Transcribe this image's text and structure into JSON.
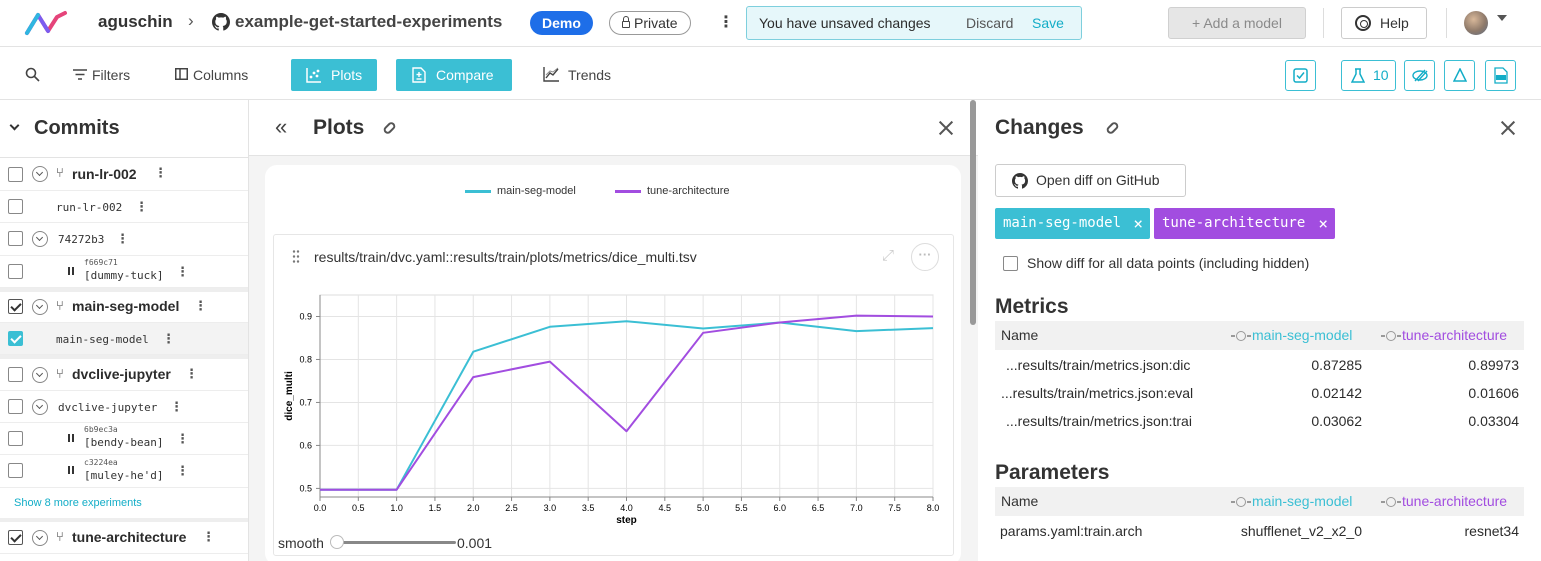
{
  "header": {
    "user": "aguschin",
    "separator": "›",
    "repo": "example-get-started-experiments",
    "demo_badge": "Demo",
    "private_badge": "Private",
    "unsaved_message": "You have unsaved changes",
    "discard_label": "Discard",
    "save_label": "Save",
    "add_model_label": "+ Add a model",
    "help_label": "Help"
  },
  "toolbar": {
    "filters_label": "Filters",
    "columns_label": "Columns",
    "plots_label": "Plots",
    "compare_label": "Compare",
    "trends_label": "Trends",
    "experiments_count": "10"
  },
  "commits": {
    "title": "Commits",
    "show_more": "Show 8 more experiments",
    "rows": [
      {
        "name": "run-lr-002"
      },
      {
        "name": "run-lr-002"
      },
      {
        "name": "74272b3"
      },
      {
        "hash": "f669c71",
        "label": "[dummy-tuck]"
      },
      {
        "name": "main-seg-model"
      },
      {
        "name": "main-seg-model"
      },
      {
        "name": "dvclive-jupyter"
      },
      {
        "name": "dvclive-jupyter"
      },
      {
        "hash": "6b9ec3a",
        "label": "[bendy-bean]"
      },
      {
        "hash": "c3224ea",
        "label": "[muley-he'd]"
      },
      {
        "name": "tune-architecture"
      }
    ]
  },
  "plots": {
    "title": "Plots",
    "plot_title": "results/train/dvc.yaml::results/train/plots/metrics/dice_multi.tsv",
    "smooth_label": "smooth",
    "smooth_value": "0.001"
  },
  "chart_data": {
    "type": "line",
    "title": "",
    "xlabel": "step",
    "ylabel": "dice_multi",
    "xlim": [
      0,
      8
    ],
    "ylim": [
      0.48,
      0.95
    ],
    "xticks": [
      0.0,
      0.5,
      1.0,
      1.5,
      2.0,
      2.5,
      3.0,
      3.5,
      4.0,
      4.5,
      5.0,
      5.5,
      6.0,
      6.5,
      7.0,
      7.5,
      8.0
    ],
    "yticks": [
      0.5,
      0.6,
      0.7,
      0.8,
      0.9
    ],
    "x": [
      0,
      1,
      2,
      3,
      4,
      5,
      6,
      7,
      8
    ],
    "grid": true,
    "legend_position": "top-center",
    "series": [
      {
        "name": "main-seg-model",
        "color": "#3bbfd4",
        "values": [
          0.497,
          0.497,
          0.818,
          0.876,
          0.889,
          0.872,
          0.886,
          0.866,
          0.873
        ]
      },
      {
        "name": "tune-architecture",
        "color": "#a24de0",
        "values": [
          0.497,
          0.497,
          0.759,
          0.795,
          0.633,
          0.862,
          0.886,
          0.902,
          0.9
        ]
      }
    ]
  },
  "changes": {
    "title": "Changes",
    "github_button": "Open diff on GitHub",
    "chips": [
      "main-seg-model",
      "tune-architecture"
    ],
    "show_diff_label": "Show diff for all data points (including hidden)",
    "metrics_title": "Metrics",
    "parameters_title": "Parameters",
    "col_name": "Name",
    "col_exp1": "main-seg-model",
    "col_exp2": "tune-architecture",
    "metrics": [
      {
        "name": "...results/train/metrics.json:dic",
        "v1": "0.87285",
        "v2": "0.89973"
      },
      {
        "name": "...results/train/metrics.json:eval",
        "v1": "0.02142",
        "v2": "0.01606"
      },
      {
        "name": "...results/train/metrics.json:trai",
        "v1": "0.03062",
        "v2": "0.03304"
      }
    ],
    "params": [
      {
        "name": "params.yaml:train.arch",
        "v1": "shufflenet_v2_x2_0",
        "v2": "resnet34"
      }
    ]
  },
  "colors": {
    "accent": "#3bbfd4",
    "exp1": "#3bbfd4",
    "exp2": "#a24de0",
    "demo": "#1e6ee8"
  }
}
